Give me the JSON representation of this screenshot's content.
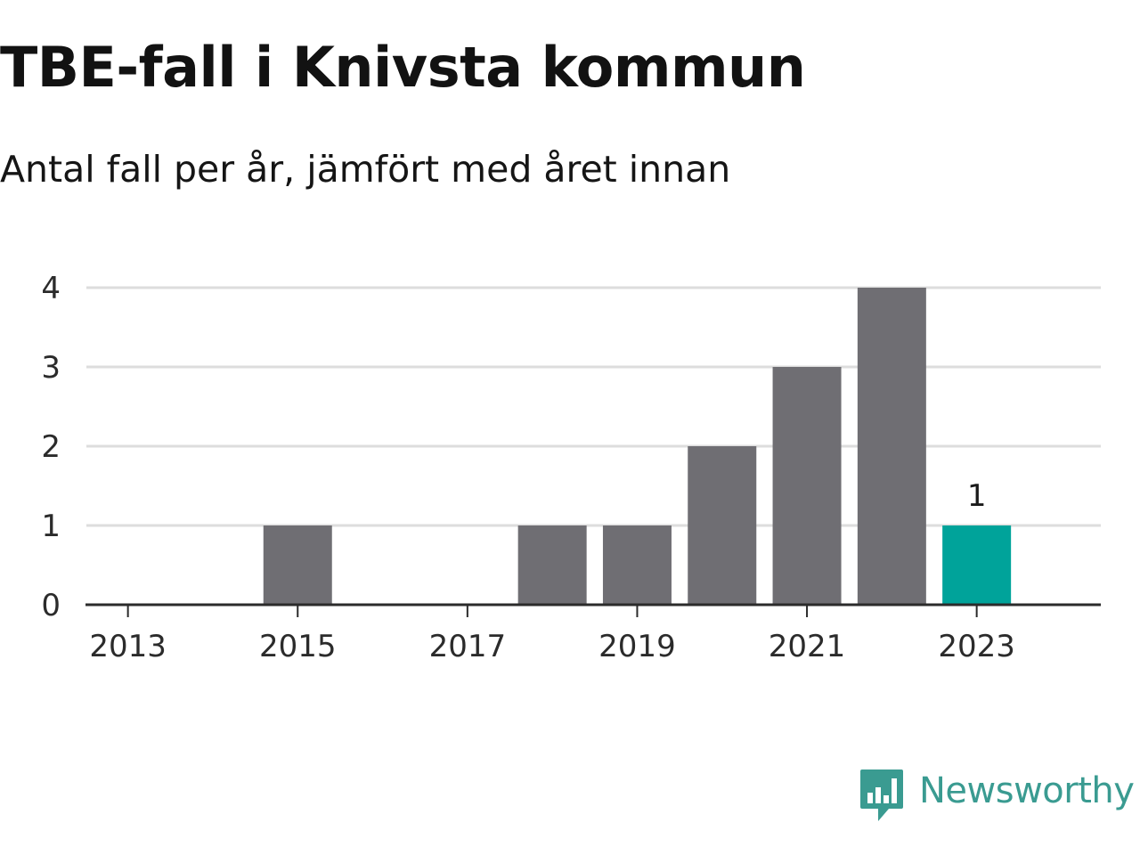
{
  "header": {
    "title": "TBE-fall i Knivsta kommun",
    "subtitle": "Antal fall per år, jämfört med året innan"
  },
  "chart_data": {
    "type": "bar",
    "x": [
      2013,
      2014,
      2015,
      2016,
      2017,
      2018,
      2019,
      2020,
      2021,
      2022,
      2023
    ],
    "values": [
      0,
      0,
      1,
      0,
      0,
      1,
      1,
      2,
      3,
      4,
      1
    ],
    "x_tick_labels": [
      "2013",
      "2015",
      "2017",
      "2019",
      "2021",
      "2023"
    ],
    "y_tick_labels": [
      "0",
      "1",
      "2",
      "3",
      "4"
    ],
    "ylim": [
      0,
      4
    ],
    "grid": "horizontal",
    "highlight": {
      "x": 2023,
      "label": "1"
    },
    "colors": {
      "bar": "#6f6e73",
      "highlight": "#00a39a",
      "grid": "#dddddd",
      "axis": "#2b2b2b"
    }
  },
  "branding": {
    "name": "Newsworthy",
    "icon": "bar-chart-speech-bubble-icon",
    "color": "#3a9b91"
  }
}
